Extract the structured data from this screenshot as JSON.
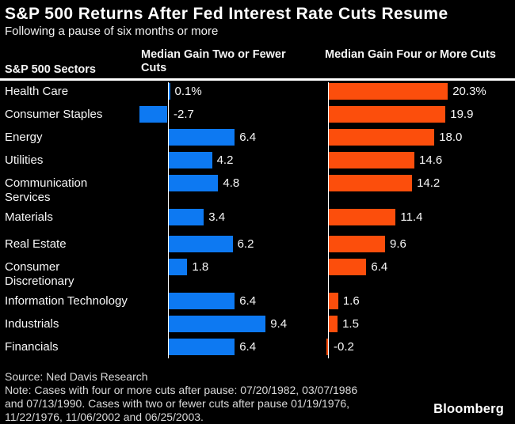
{
  "title": "S&P 500 Returns After Fed Interest Rate Cuts Resume",
  "subtitle": "Following a pause of six months or more",
  "columns": {
    "sector_header": "S&P 500 Sectors",
    "col1_header": "Median Gain Two or Fewer Cuts",
    "col2_header": "Median Gain Four or More Cuts"
  },
  "colors": {
    "background": "#000000",
    "two_or_fewer_cuts": "#0d79f2",
    "four_or_more_cuts": "#fc4e0c",
    "axis": "#ffffff",
    "text": "#f7f7f7"
  },
  "chart_data": {
    "type": "bar",
    "orientation": "horizontal",
    "unit": "%",
    "categories": [
      "Health Care",
      "Consumer Staples",
      "Energy",
      "Utilities",
      "Communication\nServices",
      "Materials",
      "Real Estate",
      "Consumer\nDiscretionary",
      "Information Technology",
      "Industrials",
      "Financials"
    ],
    "series": [
      {
        "name": "Median Gain Two or Fewer Cuts",
        "color": "#0d79f2",
        "values": [
          0.1,
          -2.7,
          6.4,
          4.2,
          4.8,
          3.4,
          6.2,
          1.8,
          6.4,
          9.4,
          6.4
        ],
        "labels": [
          "0.1%",
          "-2.7",
          "6.4",
          "4.2",
          "4.8",
          "3.4",
          "6.2",
          "1.8",
          "6.4",
          "9.4",
          "6.4"
        ]
      },
      {
        "name": "Median Gain Four or More Cuts",
        "color": "#fc4e0c",
        "values": [
          20.3,
          19.9,
          18.0,
          14.6,
          14.2,
          11.4,
          9.6,
          6.4,
          1.6,
          1.5,
          -0.2
        ],
        "labels": [
          "20.3%",
          "19.9",
          "18.0",
          "14.6",
          "14.2",
          "11.4",
          "9.6",
          "6.4",
          "1.6",
          "1.5",
          "-0.2"
        ]
      }
    ],
    "axis_note": "independent scales per column, baseline at zero"
  },
  "footer": {
    "source": "Source: Ned Davis Research",
    "note": "Note: Cases with four or more cuts after pause: 07/20/1982, 03/07/1986\nand 07/13/1990. Cases with two or fewer cuts after pause 01/19/1976,\n11/22/1976, 11/06/2002 and 06/25/2003.",
    "brand": "Bloomberg"
  }
}
